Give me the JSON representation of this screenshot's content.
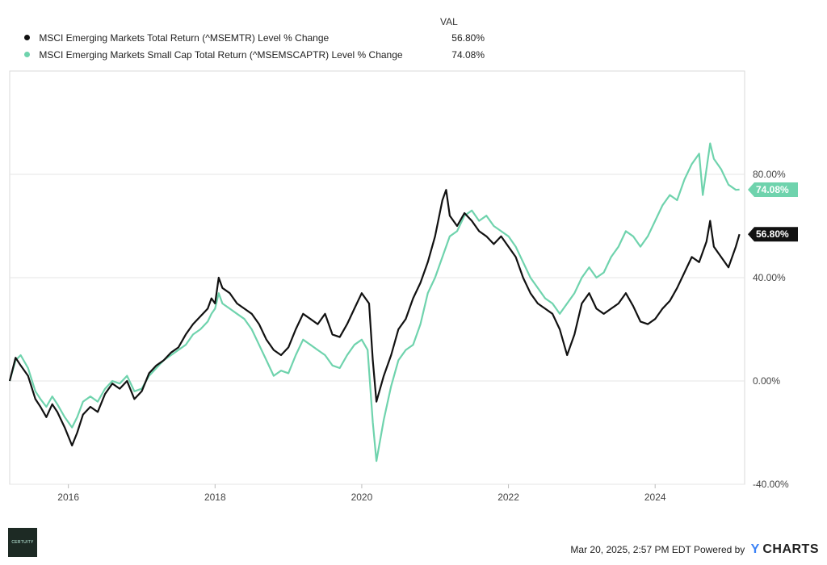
{
  "legend": {
    "header": "VAL",
    "items": [
      {
        "label": "MSCI Emerging Markets Total Return (^MSEMTR) Level % Change",
        "value": "56.80%",
        "color": "#111111"
      },
      {
        "label": "MSCI Emerging Markets Small Cap Total Return (^MSEMSCAPTR) Level % Change",
        "value": "74.08%",
        "color": "#6fd3ad"
      }
    ]
  },
  "footer": {
    "timestamp": "Mar 20, 2025, 2:57 PM EDT Powered by",
    "brand_y": "Y",
    "brand": "CHARTS",
    "logo_text": "CERTUITY"
  },
  "chart_data": {
    "type": "line",
    "xlim": [
      2015.2,
      2025.22
    ],
    "ylim": [
      -40,
      120
    ],
    "x_ticks": [
      {
        "value": 2016,
        "label": "2016"
      },
      {
        "value": 2018,
        "label": "2018"
      },
      {
        "value": 2020,
        "label": "2020"
      },
      {
        "value": 2022,
        "label": "2022"
      },
      {
        "value": 2024,
        "label": "2024"
      }
    ],
    "y_ticks": [
      {
        "value": -40,
        "label": "-40.00%"
      },
      {
        "value": 0,
        "label": "0.00%"
      },
      {
        "value": 40,
        "label": "40.00%"
      },
      {
        "value": 80,
        "label": "80.00%"
      }
    ],
    "grid": "horizontal",
    "end_labels": [
      "56.80%",
      "74.08%"
    ],
    "series": [
      {
        "name": "MSCI Emerging Markets Total Return (^MSEMTR) Level % Change",
        "color": "#111111",
        "points": [
          [
            2015.2,
            0
          ],
          [
            2015.28,
            9
          ],
          [
            2015.35,
            6
          ],
          [
            2015.45,
            2
          ],
          [
            2015.55,
            -7
          ],
          [
            2015.62,
            -10
          ],
          [
            2015.7,
            -14
          ],
          [
            2015.78,
            -9
          ],
          [
            2015.85,
            -12
          ],
          [
            2015.95,
            -18
          ],
          [
            2016.05,
            -25
          ],
          [
            2016.12,
            -20
          ],
          [
            2016.2,
            -13
          ],
          [
            2016.3,
            -10
          ],
          [
            2016.4,
            -12
          ],
          [
            2016.5,
            -5
          ],
          [
            2016.6,
            -1
          ],
          [
            2016.7,
            -3
          ],
          [
            2016.8,
            0
          ],
          [
            2016.9,
            -7
          ],
          [
            2017.0,
            -4
          ],
          [
            2017.1,
            3
          ],
          [
            2017.2,
            6
          ],
          [
            2017.3,
            8
          ],
          [
            2017.4,
            11
          ],
          [
            2017.5,
            13
          ],
          [
            2017.6,
            18
          ],
          [
            2017.7,
            22
          ],
          [
            2017.8,
            25
          ],
          [
            2017.9,
            28
          ],
          [
            2017.95,
            32
          ],
          [
            2018.0,
            30
          ],
          [
            2018.05,
            40
          ],
          [
            2018.1,
            36
          ],
          [
            2018.2,
            34
          ],
          [
            2018.3,
            30
          ],
          [
            2018.4,
            28
          ],
          [
            2018.5,
            26
          ],
          [
            2018.6,
            22
          ],
          [
            2018.7,
            16
          ],
          [
            2018.8,
            12
          ],
          [
            2018.9,
            10
          ],
          [
            2019.0,
            13
          ],
          [
            2019.1,
            20
          ],
          [
            2019.2,
            26
          ],
          [
            2019.3,
            24
          ],
          [
            2019.4,
            22
          ],
          [
            2019.5,
            26
          ],
          [
            2019.6,
            18
          ],
          [
            2019.7,
            17
          ],
          [
            2019.8,
            22
          ],
          [
            2019.9,
            28
          ],
          [
            2020.0,
            34
          ],
          [
            2020.1,
            30
          ],
          [
            2020.15,
            8
          ],
          [
            2020.2,
            -8
          ],
          [
            2020.3,
            2
          ],
          [
            2020.4,
            10
          ],
          [
            2020.5,
            20
          ],
          [
            2020.6,
            24
          ],
          [
            2020.7,
            32
          ],
          [
            2020.8,
            38
          ],
          [
            2020.9,
            46
          ],
          [
            2021.0,
            56
          ],
          [
            2021.1,
            70
          ],
          [
            2021.15,
            74
          ],
          [
            2021.2,
            64
          ],
          [
            2021.3,
            60
          ],
          [
            2021.4,
            65
          ],
          [
            2021.5,
            62
          ],
          [
            2021.6,
            58
          ],
          [
            2021.7,
            56
          ],
          [
            2021.8,
            53
          ],
          [
            2021.9,
            56
          ],
          [
            2022.0,
            52
          ],
          [
            2022.1,
            48
          ],
          [
            2022.2,
            40
          ],
          [
            2022.3,
            34
          ],
          [
            2022.4,
            30
          ],
          [
            2022.5,
            28
          ],
          [
            2022.6,
            26
          ],
          [
            2022.7,
            20
          ],
          [
            2022.8,
            10
          ],
          [
            2022.9,
            18
          ],
          [
            2023.0,
            30
          ],
          [
            2023.1,
            34
          ],
          [
            2023.2,
            28
          ],
          [
            2023.3,
            26
          ],
          [
            2023.4,
            28
          ],
          [
            2023.5,
            30
          ],
          [
            2023.6,
            34
          ],
          [
            2023.7,
            29
          ],
          [
            2023.8,
            23
          ],
          [
            2023.9,
            22
          ],
          [
            2024.0,
            24
          ],
          [
            2024.1,
            28
          ],
          [
            2024.2,
            31
          ],
          [
            2024.3,
            36
          ],
          [
            2024.4,
            42
          ],
          [
            2024.5,
            48
          ],
          [
            2024.6,
            46
          ],
          [
            2024.7,
            54
          ],
          [
            2024.75,
            62
          ],
          [
            2024.8,
            52
          ],
          [
            2024.9,
            48
          ],
          [
            2025.0,
            44
          ],
          [
            2025.1,
            52
          ],
          [
            2025.15,
            56.8
          ]
        ]
      },
      {
        "name": "MSCI Emerging Markets Small Cap Total Return (^MSEMSCAPTR) Level % Change",
        "color": "#6fd3ad",
        "points": [
          [
            2015.2,
            0
          ],
          [
            2015.28,
            8
          ],
          [
            2015.35,
            10
          ],
          [
            2015.45,
            5
          ],
          [
            2015.55,
            -4
          ],
          [
            2015.62,
            -7
          ],
          [
            2015.7,
            -10
          ],
          [
            2015.78,
            -6
          ],
          [
            2015.85,
            -9
          ],
          [
            2015.95,
            -14
          ],
          [
            2016.05,
            -18
          ],
          [
            2016.12,
            -14
          ],
          [
            2016.2,
            -8
          ],
          [
            2016.3,
            -6
          ],
          [
            2016.4,
            -8
          ],
          [
            2016.5,
            -3
          ],
          [
            2016.6,
            0
          ],
          [
            2016.7,
            -1
          ],
          [
            2016.8,
            2
          ],
          [
            2016.9,
            -4
          ],
          [
            2017.0,
            -3
          ],
          [
            2017.1,
            2
          ],
          [
            2017.2,
            5
          ],
          [
            2017.3,
            8
          ],
          [
            2017.4,
            10
          ],
          [
            2017.5,
            12
          ],
          [
            2017.6,
            14
          ],
          [
            2017.7,
            18
          ],
          [
            2017.8,
            20
          ],
          [
            2017.9,
            23
          ],
          [
            2017.95,
            26
          ],
          [
            2018.0,
            28
          ],
          [
            2018.05,
            34
          ],
          [
            2018.1,
            30
          ],
          [
            2018.2,
            28
          ],
          [
            2018.3,
            26
          ],
          [
            2018.4,
            24
          ],
          [
            2018.5,
            20
          ],
          [
            2018.6,
            14
          ],
          [
            2018.7,
            8
          ],
          [
            2018.8,
            2
          ],
          [
            2018.9,
            4
          ],
          [
            2019.0,
            3
          ],
          [
            2019.1,
            10
          ],
          [
            2019.2,
            16
          ],
          [
            2019.3,
            14
          ],
          [
            2019.4,
            12
          ],
          [
            2019.5,
            10
          ],
          [
            2019.6,
            6
          ],
          [
            2019.7,
            5
          ],
          [
            2019.8,
            10
          ],
          [
            2019.9,
            14
          ],
          [
            2020.0,
            16
          ],
          [
            2020.08,
            12
          ],
          [
            2020.15,
            -16
          ],
          [
            2020.2,
            -31
          ],
          [
            2020.3,
            -15
          ],
          [
            2020.4,
            -2
          ],
          [
            2020.5,
            8
          ],
          [
            2020.6,
            12
          ],
          [
            2020.7,
            14
          ],
          [
            2020.8,
            22
          ],
          [
            2020.9,
            34
          ],
          [
            2021.0,
            40
          ],
          [
            2021.1,
            48
          ],
          [
            2021.2,
            56
          ],
          [
            2021.3,
            58
          ],
          [
            2021.4,
            64
          ],
          [
            2021.5,
            66
          ],
          [
            2021.6,
            62
          ],
          [
            2021.7,
            64
          ],
          [
            2021.8,
            60
          ],
          [
            2021.9,
            58
          ],
          [
            2022.0,
            56
          ],
          [
            2022.1,
            52
          ],
          [
            2022.2,
            46
          ],
          [
            2022.3,
            40
          ],
          [
            2022.4,
            36
          ],
          [
            2022.5,
            32
          ],
          [
            2022.6,
            30
          ],
          [
            2022.7,
            26
          ],
          [
            2022.8,
            30
          ],
          [
            2022.9,
            34
          ],
          [
            2023.0,
            40
          ],
          [
            2023.1,
            44
          ],
          [
            2023.2,
            40
          ],
          [
            2023.3,
            42
          ],
          [
            2023.4,
            48
          ],
          [
            2023.5,
            52
          ],
          [
            2023.6,
            58
          ],
          [
            2023.7,
            56
          ],
          [
            2023.8,
            52
          ],
          [
            2023.9,
            56
          ],
          [
            2024.0,
            62
          ],
          [
            2024.1,
            68
          ],
          [
            2024.2,
            72
          ],
          [
            2024.3,
            70
          ],
          [
            2024.4,
            78
          ],
          [
            2024.5,
            84
          ],
          [
            2024.6,
            88
          ],
          [
            2024.65,
            72
          ],
          [
            2024.75,
            92
          ],
          [
            2024.8,
            86
          ],
          [
            2024.9,
            82
          ],
          [
            2025.0,
            76
          ],
          [
            2025.1,
            74
          ],
          [
            2025.15,
            74.08
          ]
        ]
      }
    ]
  }
}
